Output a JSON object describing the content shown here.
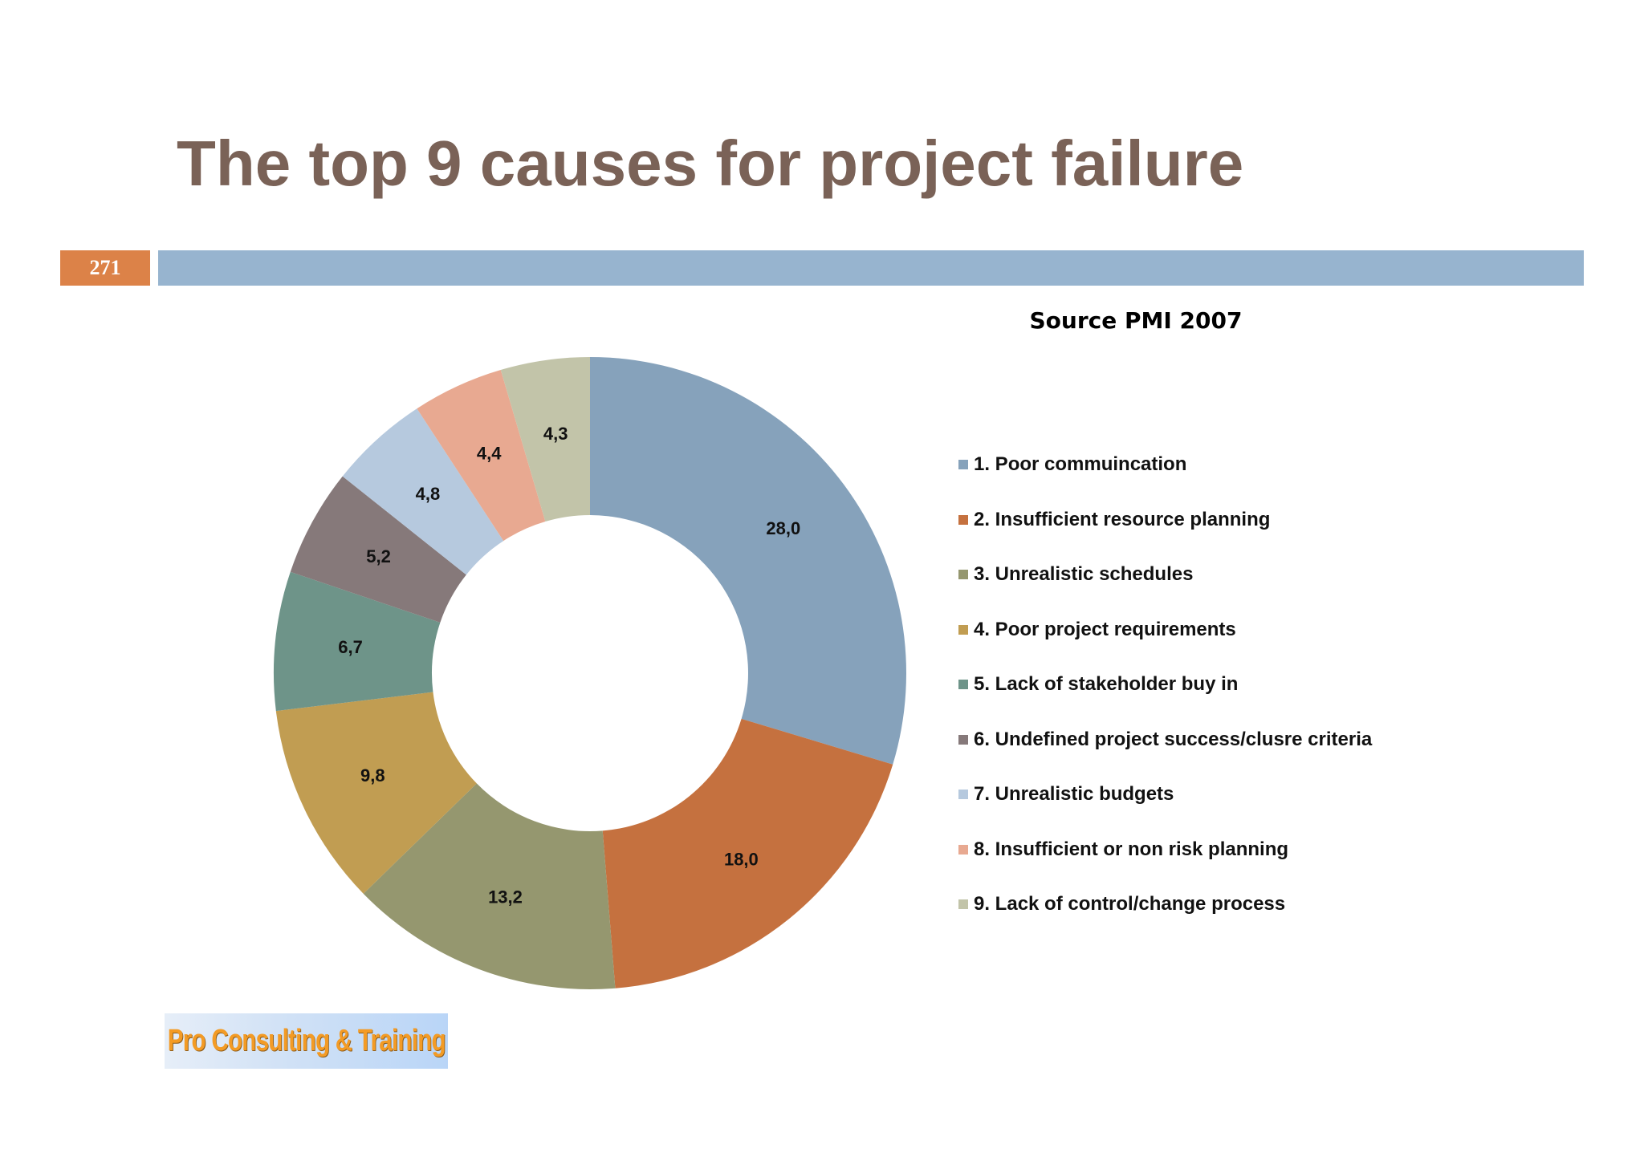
{
  "slide": {
    "title": "The top 9 causes for project failure",
    "page_number": "271",
    "source": "Source PMI 2007",
    "logo_text": "Pro Consulting & Training"
  },
  "colors": {
    "title": "#7a6257",
    "badge": "#dc8248",
    "bar": "#97b4cf"
  },
  "chart_data": {
    "type": "pie",
    "donut": true,
    "title": "",
    "categories": [
      "1. Poor commuincation",
      "2. Insufficient resource planning",
      "3. Unrealistic schedules",
      "4. Poor project requirements",
      "5. Lack of stakeholder buy in",
      "6. Undefined project success/clusre criteria",
      "7. Unrealistic budgets",
      "8. Insufficient or non risk planning",
      "9. Lack of control/change process"
    ],
    "values": [
      28.0,
      18.0,
      13.2,
      9.8,
      6.7,
      5.2,
      4.8,
      4.4,
      4.3
    ],
    "data_labels": [
      "28,0",
      "18,0",
      "13,2",
      "9,8",
      "6,7",
      "5,2",
      "4,8",
      "4,4",
      "4,3"
    ],
    "colors": [
      "#86a2bb",
      "#c5713f",
      "#95976f",
      "#c19d52",
      "#6e9489",
      "#86797a",
      "#b6c9de",
      "#e8a991",
      "#c2c4a9"
    ],
    "legend_position": "right"
  }
}
